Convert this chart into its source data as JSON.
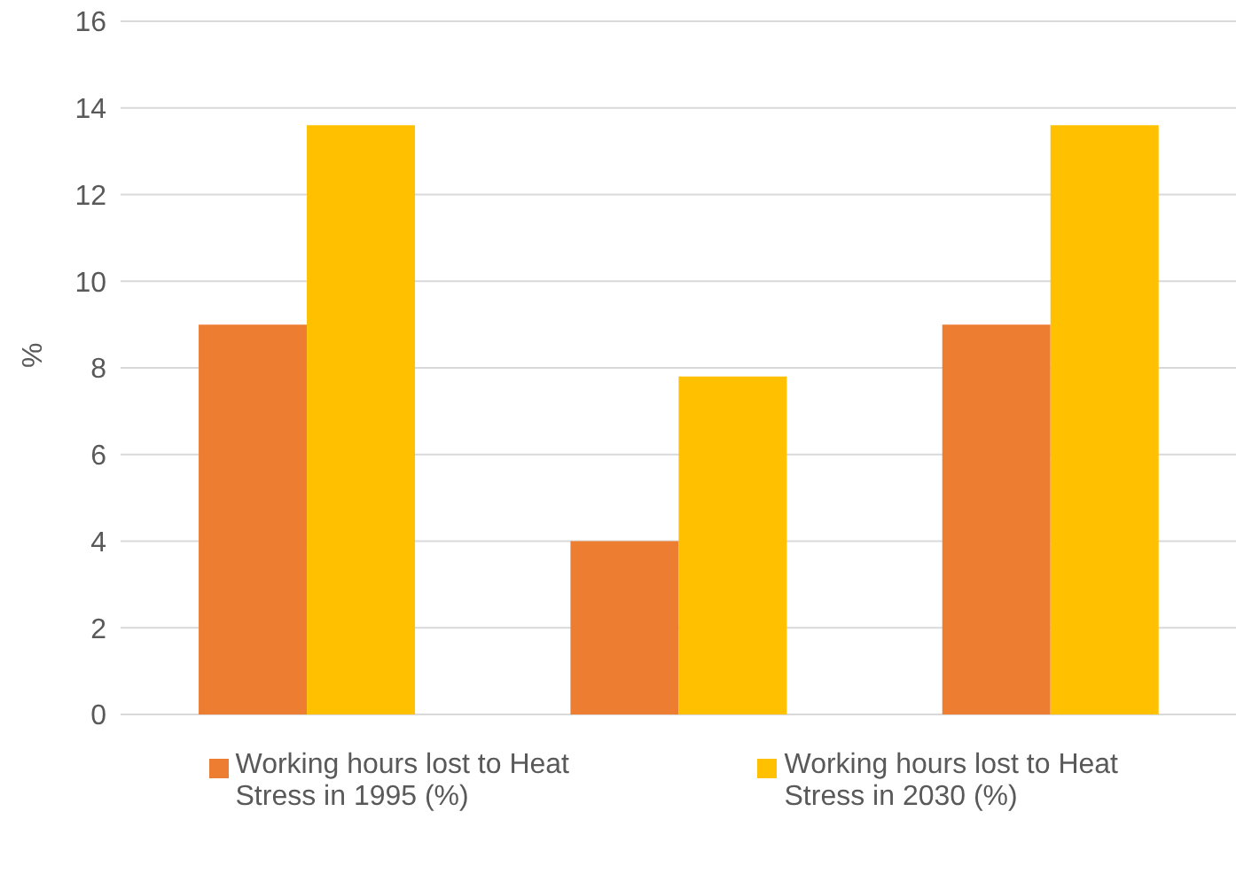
{
  "chart_data": {
    "type": "bar",
    "ylabel": "%",
    "categories": [
      null,
      null,
      null
    ],
    "series": [
      {
        "name": "Working hours lost to Heat Stress in 1995 (%)",
        "color": "#ed7d31",
        "values": [
          9,
          4,
          9
        ]
      },
      {
        "name": "Working hours lost to Heat Stress in 2030 (%)",
        "color": "#ffc000",
        "values": [
          13.6,
          7.8,
          13.6
        ]
      }
    ],
    "ylim": [
      0,
      16
    ],
    "yticks": [
      0,
      2,
      4,
      6,
      8,
      10,
      12,
      14,
      16
    ],
    "grid": "y",
    "legend": "bottom"
  }
}
